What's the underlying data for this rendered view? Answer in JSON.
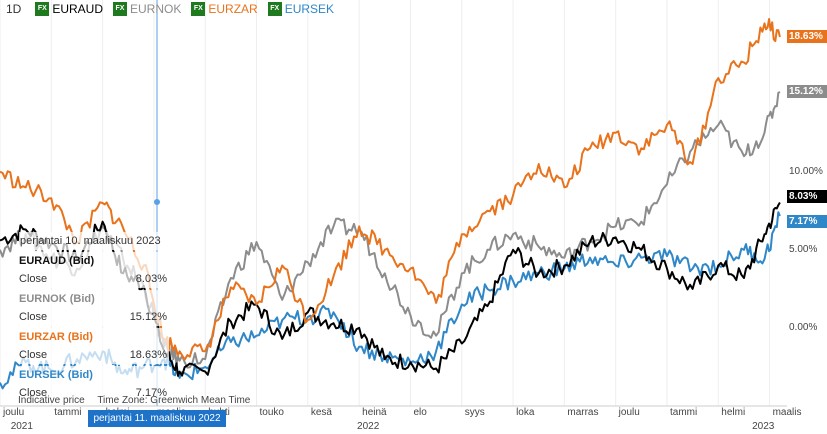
{
  "legend": {
    "timeframe": "1D",
    "fx_badge": "FX",
    "items": [
      {
        "symbol": "EURAUD",
        "color": "#000000"
      },
      {
        "symbol": "EURNOK",
        "color": "#8c8c8c"
      },
      {
        "symbol": "EURZAR",
        "color": "#e8731c"
      },
      {
        "symbol": "EURSEK",
        "color": "#2f87c8"
      }
    ]
  },
  "tooltip": {
    "date": "perjantai 10. maaliskuu 2023",
    "close_label": "Close",
    "series": [
      {
        "name": "EURAUD (Bid)",
        "close": "8.03%",
        "color": "#111111"
      },
      {
        "name": "EURNOK (Bid)",
        "close": "15.12%",
        "color": "#8c8c8c"
      },
      {
        "name": "EURZAR (Bid)",
        "close": "18.63%",
        "color": "#e8731c"
      },
      {
        "name": "EURSEK (Bid)",
        "close": "7.17%",
        "color": "#2f87c8"
      }
    ]
  },
  "footer": {
    "indicative": "Indicative price",
    "timezone": "Time Zone: Greenwich Mean Time"
  },
  "crosshair_date": "perjantai 11. maaliskuu 2022",
  "chart_data": {
    "type": "line",
    "y_unit": "%",
    "ylim": [
      -5,
      21
    ],
    "y_ticks": [
      "0.00%",
      "5.00%",
      "10.00%"
    ],
    "y_tick_values": [
      0,
      5,
      10
    ],
    "x_month_labels": [
      "joulu",
      "tammi",
      "helmi",
      "maalis",
      "huhti",
      "touko",
      "kesä",
      "heinä",
      "elo",
      "syys",
      "loka",
      "marras",
      "joulu",
      "tammi",
      "helmi",
      "maalis"
    ],
    "x_year_labels": [
      "2021",
      "2022",
      "2023"
    ],
    "x_months": [
      0,
      1,
      2,
      3,
      4,
      5,
      6,
      7,
      8,
      9,
      10,
      11,
      12,
      13,
      14,
      15
    ],
    "last_values": [
      "18.63%",
      "15.12%",
      "8.03%",
      "7.17%"
    ],
    "series": [
      {
        "name": "EURAUD",
        "color": "#000000",
        "x": [
          0,
          0.5,
          1,
          1.5,
          2,
          2.4,
          2.8,
          3.2,
          3.5,
          4,
          4.5,
          5,
          5.5,
          6,
          6.5,
          7,
          7.5,
          8,
          8.5,
          9,
          9.5,
          10,
          10.5,
          11,
          11.5,
          12,
          12.5,
          13,
          13.5,
          14,
          14.5,
          14.9,
          15.2
        ],
        "values": [
          5.6,
          6.3,
          5.4,
          4.4,
          6.8,
          3.5,
          2.7,
          -1.5,
          -2.8,
          -2.8,
          0.4,
          1.5,
          -0.7,
          1.0,
          0.3,
          0.0,
          -2.0,
          -2.2,
          -2.6,
          -1.0,
          1.4,
          5.0,
          3.5,
          4.0,
          5.5,
          5.8,
          5.0,
          3.8,
          2.5,
          4.0,
          3.2,
          6.0,
          8.03
        ]
      },
      {
        "name": "EURNOK",
        "color": "#8c8c8c",
        "x": [
          0,
          0.5,
          1,
          1.5,
          2,
          2.4,
          2.8,
          3.2,
          3.5,
          4,
          4.5,
          5,
          5.5,
          6,
          6.5,
          7,
          7.5,
          8,
          8.5,
          9,
          9.5,
          10,
          10.5,
          11,
          11.5,
          12,
          12.5,
          13,
          13.5,
          14,
          14.5,
          14.9,
          15.2
        ],
        "values": [
          5.0,
          6.0,
          4.5,
          3.8,
          6.5,
          4.4,
          2.7,
          -1.2,
          -2.1,
          -2.0,
          3.2,
          5.5,
          1.8,
          4.2,
          6.5,
          6.3,
          3.5,
          0.8,
          -0.5,
          3.5,
          5.0,
          6.0,
          5.2,
          4.5,
          5.6,
          6.5,
          6.8,
          9.2,
          11.5,
          13.0,
          11.0,
          12.5,
          15.12
        ]
      },
      {
        "name": "EURZAR",
        "color": "#e8731c",
        "x": [
          0,
          0.5,
          1,
          1.5,
          2,
          2.4,
          2.8,
          3.2,
          3.5,
          4,
          4.5,
          5,
          5.5,
          6,
          6.5,
          7,
          7.5,
          8,
          8.5,
          9,
          9.5,
          10,
          10.5,
          11,
          11.5,
          12,
          12.5,
          13,
          13.5,
          14,
          14.5,
          14.9,
          15.2
        ],
        "values": [
          10.0,
          9.0,
          8.3,
          5.5,
          8.0,
          6.4,
          4.0,
          -0.7,
          -1.5,
          -1.5,
          2.6,
          1.5,
          4.0,
          0.5,
          3.3,
          6.5,
          5.0,
          3.8,
          1.6,
          6.0,
          7.5,
          8.5,
          10.5,
          9.0,
          11.5,
          12.5,
          11.5,
          13.0,
          10.5,
          16.0,
          17.0,
          19.5,
          18.63
        ]
      },
      {
        "name": "EURSEK",
        "color": "#2f87c8",
        "x": [
          0,
          0.5,
          1,
          1.5,
          2,
          2.4,
          2.8,
          3.2,
          3.5,
          4,
          4.5,
          5,
          5.5,
          6,
          6.5,
          7,
          7.5,
          8,
          8.5,
          9,
          9.5,
          10,
          10.5,
          11,
          11.5,
          12,
          12.5,
          13,
          13.5,
          14,
          14.5,
          14.9,
          15.2
        ],
        "values": [
          -3.5,
          -2.2,
          -2.7,
          -2.0,
          -1.5,
          -2.9,
          -2.5,
          -2.0,
          -3.2,
          -2.5,
          -0.9,
          -0.5,
          0.5,
          0.7,
          1.0,
          -1.2,
          -1.8,
          -2.2,
          -1.5,
          1.5,
          2.5,
          3.0,
          3.5,
          3.8,
          4.5,
          4.0,
          4.5,
          4.6,
          3.8,
          4.0,
          5.0,
          4.4,
          7.17
        ]
      }
    ]
  }
}
